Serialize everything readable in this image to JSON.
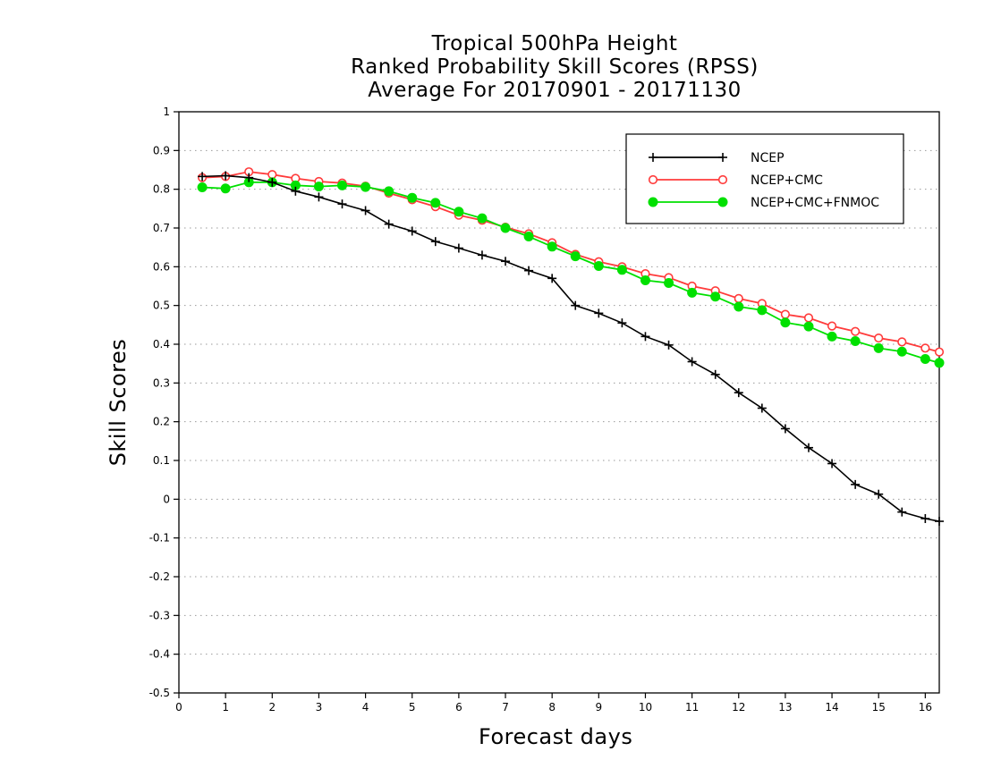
{
  "chart_data": {
    "type": "line",
    "title_lines": [
      "Tropical 500hPa Height",
      "Ranked Probability Skill Scores (RPSS)",
      "Average For 20170901 - 20171130"
    ],
    "xlabel": "Forecast days",
    "ylabel": "Skill Scores",
    "xlim": [
      0,
      16.3
    ],
    "ylim": [
      -0.5,
      1
    ],
    "x_ticks": [
      0,
      1,
      2,
      3,
      4,
      5,
      6,
      7,
      8,
      9,
      10,
      11,
      12,
      13,
      14,
      15,
      16
    ],
    "y_ticks": [
      -0.5,
      -0.4,
      -0.3,
      -0.2,
      -0.1,
      0,
      0.1,
      0.2,
      0.3,
      0.4,
      0.5,
      0.6,
      0.7,
      0.8,
      0.9,
      1
    ],
    "y_tick_labels": [
      "-0.5",
      "-0.4",
      "-0.3",
      "-0.2",
      "-0.1",
      "0",
      "0.1",
      "0.2",
      "0.3",
      "0.4",
      "0.5",
      "0.6",
      "0.7",
      "0.8",
      "0.9",
      "1"
    ],
    "grid": "horizontal dotted",
    "legend_position": "top-right",
    "x": [
      0.5,
      1.0,
      1.5,
      2.0,
      2.5,
      3.0,
      3.5,
      4.0,
      4.5,
      5.0,
      5.5,
      6.0,
      6.5,
      7.0,
      7.5,
      8.0,
      8.5,
      9.0,
      9.5,
      10.0,
      10.5,
      11.0,
      11.5,
      12.0,
      12.5,
      13.0,
      13.5,
      14.0,
      14.5,
      15.0,
      15.5,
      16.0,
      16.3
    ],
    "series": [
      {
        "name": "NCEP",
        "color": "#000000",
        "marker": "plus",
        "values": [
          0.833,
          0.835,
          0.83,
          0.818,
          0.795,
          0.78,
          0.762,
          0.745,
          0.71,
          0.692,
          0.665,
          0.648,
          0.63,
          0.614,
          0.59,
          0.57,
          0.5,
          0.48,
          0.455,
          0.42,
          0.398,
          0.355,
          0.322,
          0.275,
          0.235,
          0.182,
          0.133,
          0.092,
          0.038,
          0.013,
          -0.033,
          -0.05,
          -0.057
        ]
      },
      {
        "name": "NCEP+CMC",
        "color": "#ff3b3b",
        "marker": "open-circle",
        "values": [
          0.83,
          0.833,
          0.845,
          0.838,
          0.828,
          0.82,
          0.816,
          0.808,
          0.79,
          0.773,
          0.755,
          0.733,
          0.72,
          0.702,
          0.685,
          0.662,
          0.632,
          0.613,
          0.6,
          0.582,
          0.572,
          0.55,
          0.538,
          0.518,
          0.505,
          0.477,
          0.468,
          0.447,
          0.433,
          0.416,
          0.406,
          0.39,
          0.38
        ]
      },
      {
        "name": "NCEP+CMC+FNMOC",
        "color": "#00e000",
        "marker": "filled-circle",
        "values": [
          0.805,
          0.802,
          0.818,
          0.818,
          0.81,
          0.807,
          0.81,
          0.806,
          0.795,
          0.778,
          0.765,
          0.742,
          0.725,
          0.7,
          0.678,
          0.652,
          0.627,
          0.602,
          0.592,
          0.565,
          0.558,
          0.533,
          0.523,
          0.497,
          0.488,
          0.456,
          0.446,
          0.42,
          0.408,
          0.39,
          0.381,
          0.362,
          0.352
        ]
      }
    ]
  }
}
